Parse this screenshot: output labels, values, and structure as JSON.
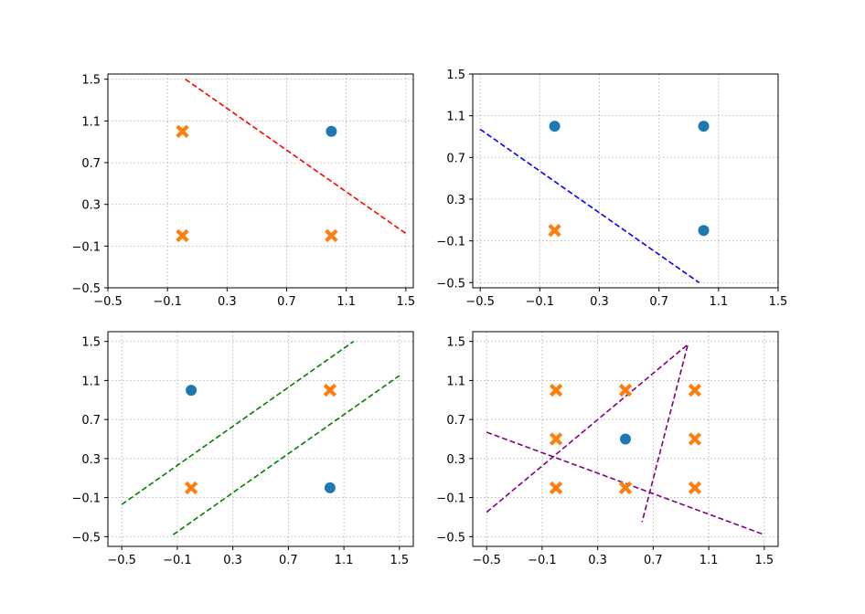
{
  "colors": {
    "circle_marker": "#1f77b4",
    "x_marker": "#ff7f0e",
    "grid": "#b0b0b0"
  },
  "chart_data": [
    {
      "type": "scatter",
      "panel": "top-left",
      "title": "",
      "xlabel": "",
      "ylabel": "",
      "xlim": [
        -0.5,
        1.55
      ],
      "ylim": [
        -0.5,
        1.55
      ],
      "xticks": [
        "−0.5",
        "−0.1",
        "0.3",
        "0.7",
        "1.1",
        "1.5"
      ],
      "yticks": [
        "−0.5",
        "−0.1",
        "0.3",
        "0.7",
        "1.1",
        "1.5"
      ],
      "grid": true,
      "circles": [
        [
          1,
          1
        ]
      ],
      "crosses": [
        [
          0,
          0
        ],
        [
          0,
          1
        ],
        [
          1,
          0
        ]
      ],
      "lines": [
        {
          "color": "#ff0000",
          "points": [
            [
              0.02,
              1.5
            ],
            [
              1.5,
              0.02
            ]
          ]
        }
      ]
    },
    {
      "type": "scatter",
      "panel": "top-right",
      "title": "",
      "xlabel": "",
      "ylabel": "",
      "xlim": [
        -0.55,
        1.5
      ],
      "ylim": [
        -0.55,
        1.5
      ],
      "xticks": [
        "−0.5",
        "−0.1",
        "0.3",
        "0.7",
        "1.1",
        "1.5"
      ],
      "yticks": [
        "−0.5",
        "−0.1",
        "0.3",
        "0.7",
        "1.1",
        "1.5"
      ],
      "grid": true,
      "circles": [
        [
          0,
          1
        ],
        [
          1,
          1
        ],
        [
          1,
          0
        ]
      ],
      "crosses": [
        [
          0,
          0
        ]
      ],
      "lines": [
        {
          "color": "#0000ff",
          "points": [
            [
              -0.5,
              0.97
            ],
            [
              0.97,
              -0.5
            ]
          ]
        }
      ]
    },
    {
      "type": "scatter",
      "panel": "bottom-left",
      "title": "",
      "xlabel": "",
      "ylabel": "",
      "xlim": [
        -0.6,
        1.6
      ],
      "ylim": [
        -0.6,
        1.6
      ],
      "xticks": [
        "−0.5",
        "−0.1",
        "0.3",
        "0.7",
        "1.1",
        "1.5"
      ],
      "yticks": [
        "−0.5",
        "−0.1",
        "0.3",
        "0.7",
        "1.1",
        "1.5"
      ],
      "grid": true,
      "circles": [
        [
          0,
          1
        ],
        [
          1,
          0
        ]
      ],
      "crosses": [
        [
          0,
          0
        ],
        [
          1,
          1
        ]
      ],
      "lines": [
        {
          "color": "#008000",
          "points": [
            [
              -0.5,
              -0.17
            ],
            [
              1.17,
              1.5
            ]
          ]
        },
        {
          "color": "#008000",
          "points": [
            [
              -0.13,
              -0.48
            ],
            [
              1.5,
              1.15
            ]
          ]
        }
      ]
    },
    {
      "type": "scatter",
      "panel": "bottom-right",
      "title": "",
      "xlabel": "",
      "ylabel": "",
      "xlim": [
        -0.6,
        1.6
      ],
      "ylim": [
        -0.6,
        1.6
      ],
      "xticks": [
        "−0.5",
        "−0.1",
        "0.3",
        "0.7",
        "1.1",
        "1.5"
      ],
      "yticks": [
        "−0.5",
        "−0.1",
        "0.3",
        "0.7",
        "1.1",
        "1.5"
      ],
      "grid": true,
      "circles": [
        [
          0.5,
          0.5
        ]
      ],
      "crosses": [
        [
          0,
          0
        ],
        [
          0.5,
          0
        ],
        [
          1,
          0
        ],
        [
          0,
          0.5
        ],
        [
          1,
          0.5
        ],
        [
          0,
          1
        ],
        [
          0.5,
          1
        ],
        [
          1,
          1
        ]
      ],
      "lines": [
        {
          "color": "#800080",
          "points": [
            [
              -0.5,
              -0.25
            ],
            [
              0.95,
              1.47
            ],
            [
              0.62,
              -0.35
            ]
          ]
        },
        {
          "color": "#800080",
          "points": [
            [
              -0.5,
              0.57
            ],
            [
              1.5,
              -0.48
            ]
          ]
        }
      ]
    }
  ]
}
